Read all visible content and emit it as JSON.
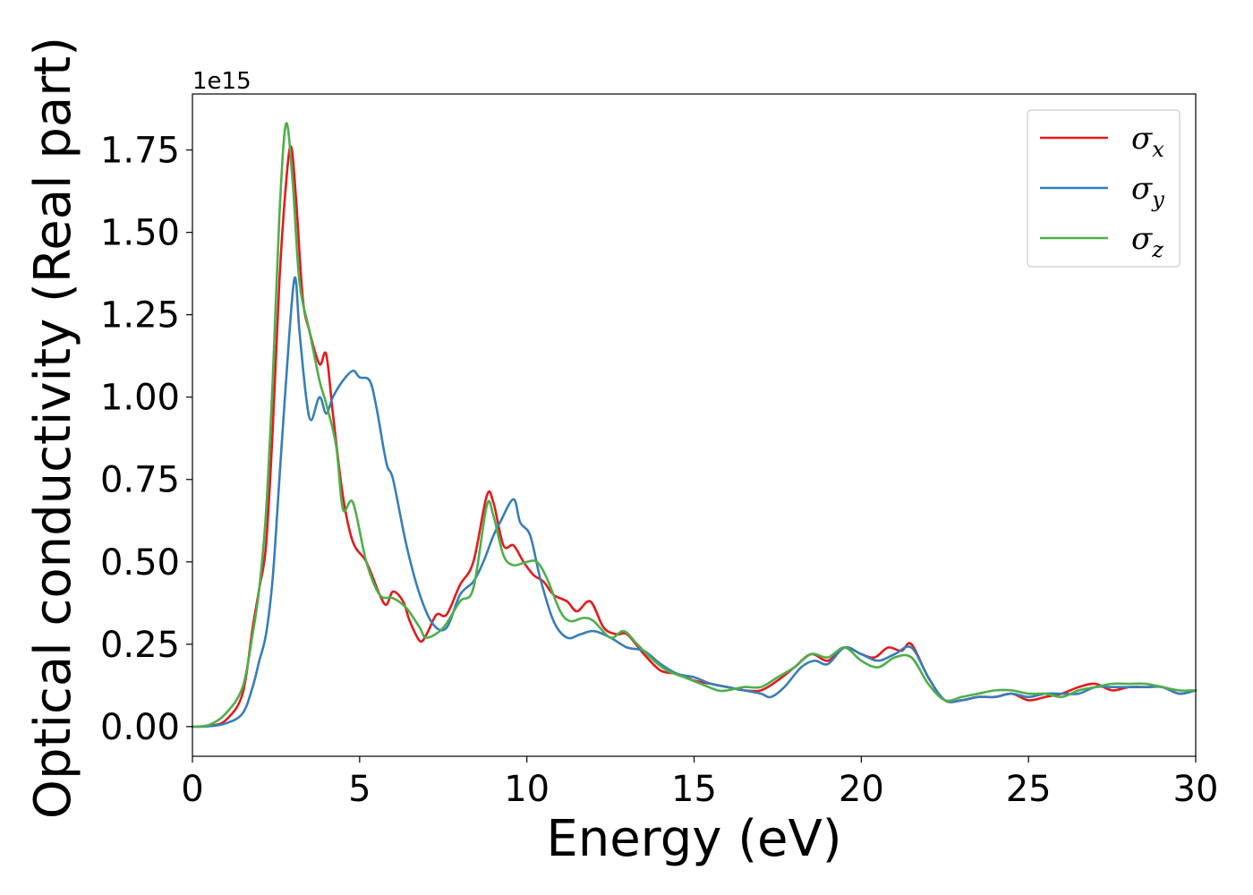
{
  "chart_data": {
    "type": "line",
    "title": "",
    "xlabel": "Energy (eV)",
    "ylabel": "Optical conductivity (Real part)",
    "y_offset_text": "1e15",
    "xlim": [
      0,
      30
    ],
    "ylim": [
      -0.09,
      1.92
    ],
    "x_ticks": [
      0,
      5,
      10,
      15,
      20,
      25,
      30
    ],
    "x_tick_labels": [
      "0",
      "5",
      "10",
      "15",
      "20",
      "25",
      "30"
    ],
    "y_ticks": [
      0.0,
      0.25,
      0.5,
      0.75,
      1.0,
      1.25,
      1.5,
      1.75
    ],
    "y_tick_labels": [
      "0.00",
      "0.25",
      "0.50",
      "0.75",
      "1.00",
      "1.25",
      "1.50",
      "1.75"
    ],
    "grid": false,
    "legend_position": "top-right",
    "series": [
      {
        "name": "σx",
        "legend_symbol": "σ",
        "legend_subscript": "x",
        "color": "#e41a1c",
        "points": [
          [
            0,
            0.0
          ],
          [
            0.5,
            0.002
          ],
          [
            1.0,
            0.02
          ],
          [
            1.5,
            0.1
          ],
          [
            1.8,
            0.3
          ],
          [
            2.0,
            0.42
          ],
          [
            2.2,
            0.55
          ],
          [
            2.4,
            0.9
          ],
          [
            2.6,
            1.35
          ],
          [
            2.8,
            1.65
          ],
          [
            2.95,
            1.76
          ],
          [
            3.1,
            1.6
          ],
          [
            3.3,
            1.3
          ],
          [
            3.5,
            1.2
          ],
          [
            3.8,
            1.1
          ],
          [
            4.0,
            1.13
          ],
          [
            4.2,
            0.95
          ],
          [
            4.5,
            0.7
          ],
          [
            4.8,
            0.56
          ],
          [
            5.2,
            0.5
          ],
          [
            5.6,
            0.4
          ],
          [
            5.8,
            0.37
          ],
          [
            6.0,
            0.41
          ],
          [
            6.3,
            0.38
          ],
          [
            6.5,
            0.32
          ],
          [
            6.8,
            0.26
          ],
          [
            7.0,
            0.28
          ],
          [
            7.3,
            0.34
          ],
          [
            7.6,
            0.34
          ],
          [
            8.0,
            0.43
          ],
          [
            8.4,
            0.5
          ],
          [
            8.8,
            0.7
          ],
          [
            9.0,
            0.68
          ],
          [
            9.3,
            0.55
          ],
          [
            9.6,
            0.55
          ],
          [
            9.9,
            0.5
          ],
          [
            10.2,
            0.46
          ],
          [
            10.5,
            0.44
          ],
          [
            10.8,
            0.4
          ],
          [
            11.2,
            0.38
          ],
          [
            11.5,
            0.35
          ],
          [
            11.9,
            0.38
          ],
          [
            12.3,
            0.3
          ],
          [
            12.7,
            0.28
          ],
          [
            13.0,
            0.28
          ],
          [
            13.5,
            0.22
          ],
          [
            14.0,
            0.17
          ],
          [
            14.5,
            0.16
          ],
          [
            15.0,
            0.14
          ],
          [
            15.5,
            0.13
          ],
          [
            16.0,
            0.12
          ],
          [
            16.5,
            0.11
          ],
          [
            17.0,
            0.11
          ],
          [
            17.5,
            0.14
          ],
          [
            18.0,
            0.18
          ],
          [
            18.5,
            0.22
          ],
          [
            19.0,
            0.2
          ],
          [
            19.5,
            0.24
          ],
          [
            20.0,
            0.22
          ],
          [
            20.4,
            0.21
          ],
          [
            20.8,
            0.24
          ],
          [
            21.2,
            0.23
          ],
          [
            21.5,
            0.25
          ],
          [
            22.0,
            0.15
          ],
          [
            22.5,
            0.08
          ],
          [
            23.0,
            0.08
          ],
          [
            23.5,
            0.09
          ],
          [
            24.0,
            0.09
          ],
          [
            24.5,
            0.1
          ],
          [
            25.0,
            0.08
          ],
          [
            25.5,
            0.09
          ],
          [
            26.0,
            0.1
          ],
          [
            26.5,
            0.12
          ],
          [
            27.0,
            0.13
          ],
          [
            27.5,
            0.11
          ],
          [
            28.0,
            0.12
          ],
          [
            28.5,
            0.12
          ],
          [
            29.0,
            0.12
          ],
          [
            29.5,
            0.1
          ],
          [
            30.0,
            0.11
          ]
        ]
      },
      {
        "name": "σy",
        "legend_symbol": "σ",
        "legend_subscript": "y",
        "color": "#377eb8",
        "points": [
          [
            0,
            0.0
          ],
          [
            0.5,
            0.001
          ],
          [
            1.0,
            0.01
          ],
          [
            1.5,
            0.04
          ],
          [
            1.8,
            0.12
          ],
          [
            2.0,
            0.2
          ],
          [
            2.2,
            0.28
          ],
          [
            2.4,
            0.45
          ],
          [
            2.6,
            0.75
          ],
          [
            2.8,
            1.05
          ],
          [
            3.05,
            1.36
          ],
          [
            3.2,
            1.2
          ],
          [
            3.4,
            1.0
          ],
          [
            3.55,
            0.93
          ],
          [
            3.8,
            1.0
          ],
          [
            4.0,
            0.95
          ],
          [
            4.2,
            1.0
          ],
          [
            4.5,
            1.05
          ],
          [
            4.8,
            1.08
          ],
          [
            5.0,
            1.06
          ],
          [
            5.3,
            1.05
          ],
          [
            5.5,
            0.97
          ],
          [
            5.8,
            0.8
          ],
          [
            6.0,
            0.75
          ],
          [
            6.4,
            0.55
          ],
          [
            6.8,
            0.4
          ],
          [
            7.2,
            0.31
          ],
          [
            7.6,
            0.3
          ],
          [
            8.0,
            0.4
          ],
          [
            8.4,
            0.44
          ],
          [
            8.7,
            0.5
          ],
          [
            9.0,
            0.58
          ],
          [
            9.2,
            0.62
          ],
          [
            9.6,
            0.69
          ],
          [
            9.8,
            0.62
          ],
          [
            10.1,
            0.58
          ],
          [
            10.4,
            0.45
          ],
          [
            10.8,
            0.32
          ],
          [
            11.2,
            0.27
          ],
          [
            11.6,
            0.28
          ],
          [
            12.0,
            0.29
          ],
          [
            12.5,
            0.27
          ],
          [
            13.0,
            0.24
          ],
          [
            13.5,
            0.23
          ],
          [
            14.0,
            0.19
          ],
          [
            14.5,
            0.16
          ],
          [
            15.0,
            0.15
          ],
          [
            15.5,
            0.13
          ],
          [
            16.0,
            0.12
          ],
          [
            16.5,
            0.11
          ],
          [
            17.0,
            0.1
          ],
          [
            17.3,
            0.09
          ],
          [
            17.7,
            0.12
          ],
          [
            18.2,
            0.18
          ],
          [
            18.6,
            0.2
          ],
          [
            19.0,
            0.19
          ],
          [
            19.5,
            0.24
          ],
          [
            20.0,
            0.22
          ],
          [
            20.5,
            0.2
          ],
          [
            21.0,
            0.22
          ],
          [
            21.5,
            0.24
          ],
          [
            22.0,
            0.15
          ],
          [
            22.5,
            0.08
          ],
          [
            23.0,
            0.08
          ],
          [
            23.5,
            0.09
          ],
          [
            24.0,
            0.09
          ],
          [
            24.5,
            0.1
          ],
          [
            25.0,
            0.09
          ],
          [
            25.5,
            0.1
          ],
          [
            26.0,
            0.1
          ],
          [
            26.5,
            0.1
          ],
          [
            27.0,
            0.12
          ],
          [
            27.5,
            0.12
          ],
          [
            28.0,
            0.12
          ],
          [
            28.5,
            0.12
          ],
          [
            29.0,
            0.12
          ],
          [
            29.5,
            0.1
          ],
          [
            30.0,
            0.11
          ]
        ]
      },
      {
        "name": "σz",
        "legend_symbol": "σ",
        "legend_subscript": "z",
        "color": "#4daf4a",
        "points": [
          [
            0,
            0.0
          ],
          [
            0.5,
            0.005
          ],
          [
            1.0,
            0.04
          ],
          [
            1.5,
            0.12
          ],
          [
            1.8,
            0.28
          ],
          [
            2.0,
            0.42
          ],
          [
            2.2,
            0.65
          ],
          [
            2.4,
            1.05
          ],
          [
            2.6,
            1.55
          ],
          [
            2.8,
            1.83
          ],
          [
            3.0,
            1.65
          ],
          [
            3.2,
            1.35
          ],
          [
            3.5,
            1.2
          ],
          [
            3.8,
            1.05
          ],
          [
            4.0,
            0.98
          ],
          [
            4.3,
            0.85
          ],
          [
            4.5,
            0.66
          ],
          [
            4.8,
            0.68
          ],
          [
            5.2,
            0.5
          ],
          [
            5.6,
            0.4
          ],
          [
            6.0,
            0.39
          ],
          [
            6.4,
            0.36
          ],
          [
            6.8,
            0.3
          ],
          [
            7.0,
            0.27
          ],
          [
            7.5,
            0.3
          ],
          [
            8.0,
            0.38
          ],
          [
            8.4,
            0.42
          ],
          [
            8.8,
            0.67
          ],
          [
            9.0,
            0.64
          ],
          [
            9.3,
            0.52
          ],
          [
            9.6,
            0.49
          ],
          [
            10.0,
            0.5
          ],
          [
            10.3,
            0.5
          ],
          [
            10.6,
            0.45
          ],
          [
            11.0,
            0.35
          ],
          [
            11.3,
            0.32
          ],
          [
            11.7,
            0.33
          ],
          [
            12.0,
            0.32
          ],
          [
            12.5,
            0.27
          ],
          [
            12.9,
            0.29
          ],
          [
            13.3,
            0.25
          ],
          [
            13.8,
            0.2
          ],
          [
            14.2,
            0.17
          ],
          [
            14.7,
            0.15
          ],
          [
            15.2,
            0.13
          ],
          [
            15.7,
            0.11
          ],
          [
            16.0,
            0.11
          ],
          [
            16.5,
            0.12
          ],
          [
            17.0,
            0.12
          ],
          [
            17.5,
            0.15
          ],
          [
            18.0,
            0.18
          ],
          [
            18.5,
            0.22
          ],
          [
            19.0,
            0.21
          ],
          [
            19.5,
            0.24
          ],
          [
            20.0,
            0.2
          ],
          [
            20.5,
            0.18
          ],
          [
            21.0,
            0.21
          ],
          [
            21.5,
            0.21
          ],
          [
            22.0,
            0.13
          ],
          [
            22.5,
            0.08
          ],
          [
            23.0,
            0.09
          ],
          [
            23.5,
            0.1
          ],
          [
            24.0,
            0.11
          ],
          [
            24.5,
            0.11
          ],
          [
            25.0,
            0.1
          ],
          [
            25.5,
            0.1
          ],
          [
            26.0,
            0.09
          ],
          [
            26.5,
            0.11
          ],
          [
            27.0,
            0.12
          ],
          [
            27.5,
            0.13
          ],
          [
            28.0,
            0.13
          ],
          [
            28.5,
            0.13
          ],
          [
            29.0,
            0.12
          ],
          [
            29.5,
            0.11
          ],
          [
            30.0,
            0.11
          ]
        ]
      }
    ]
  }
}
